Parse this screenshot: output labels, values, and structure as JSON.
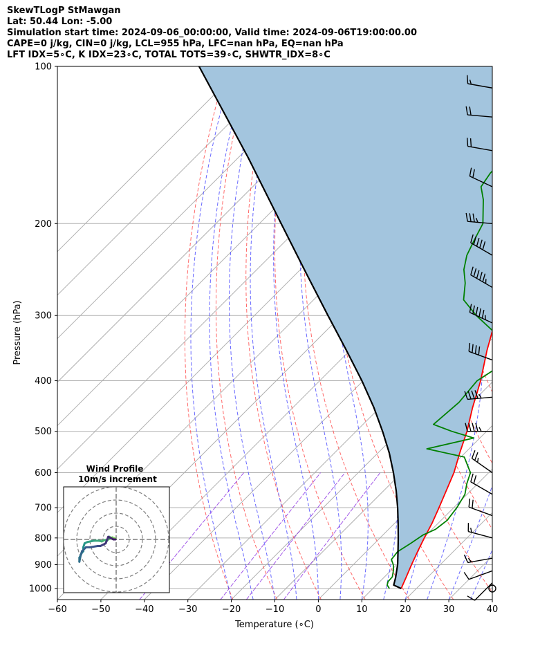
{
  "header": {
    "line1": "SkewTLogP StMawgan",
    "line2": "Lat: 50.44   Lon: -5.00",
    "line3": "Simulation start time: 2024-09-06_00:00:00, Valid time: 2024-09-06T19:00:00.00",
    "line4": "CAPE=0 j/kg, CIN=0 j/kg, LCL=955 hPa, LFC=nan hPa, EQ=nan hPa",
    "line5": "LFT IDX=5∘C, K IDX=23∘C, TOTAL TOTS=39∘C, SHWTR_IDX=8∘C"
  },
  "chart_data": {
    "type": "line",
    "xlabel": "Temperature (∘C)",
    "ylabel": "Pressure (hPa)",
    "xlim": [
      -60,
      40
    ],
    "ylim": [
      1050,
      100
    ],
    "yscale": "log",
    "grid": true,
    "x_ticks": [
      -60,
      -50,
      -40,
      -30,
      -20,
      -10,
      0,
      10,
      20,
      30,
      40
    ],
    "x_tick_labels": [
      "−60",
      "−50",
      "−40",
      "−30",
      "−20",
      "−10",
      "0",
      "10",
      "20",
      "30",
      "40"
    ],
    "y_ticks": [
      1000,
      900,
      800,
      700,
      600,
      500,
      400,
      300,
      200,
      100
    ],
    "y_tick_labels": [
      "1000",
      "900",
      "800",
      "700",
      "600",
      "500",
      "400",
      "300",
      "200",
      "100"
    ],
    "series": [
      {
        "color": "#ff0000",
        "pressure": [
          1000,
          950,
          900,
          850,
          800,
          750,
          700,
          650,
          600,
          550,
          500,
          450,
          400,
          350,
          300,
          290,
          275,
          250,
          230,
          215,
          200,
          185,
          170,
          160,
          150,
          140,
          130,
          120,
          110,
          100
        ],
        "values": [
          16.5,
          15.0,
          13.4,
          11.8,
          10.2,
          8.6,
          6.6,
          4.4,
          2.0,
          -1.2,
          -4.5,
          -8.7,
          -13.0,
          -18.5,
          -24.3,
          -25.2,
          -25.6,
          -25.0,
          -24.0,
          -22.5,
          -20.4,
          -18.0,
          -16.0,
          -14.5,
          -13.3,
          -12.0,
          -11.0,
          -9.6,
          -8.7,
          -7.3
        ]
      },
      {
        "color": "#008000",
        "pressure": [
          1000,
          985,
          970,
          950,
          920,
          900,
          880,
          850,
          820,
          790,
          770,
          740,
          700,
          660,
          630,
          600,
          560,
          540,
          515,
          500,
          485,
          440,
          400,
          360,
          340,
          320,
          300,
          280,
          260,
          245,
          230,
          215,
          200,
          180,
          170,
          160,
          150,
          140,
          130,
          120,
          110,
          100
        ],
        "values": [
          13.8,
          12.5,
          11.9,
          11.8,
          10.4,
          9.2,
          7.6,
          7.2,
          8.3,
          9.2,
          10.8,
          11.4,
          10.7,
          9.5,
          7.5,
          5.8,
          0.8,
          -9.7,
          -1.4,
          -8.0,
          -13.8,
          -13.0,
          -13.8,
          -10.8,
          -14.8,
          -22.0,
          -29.0,
          -35.5,
          -39.0,
          -42.4,
          -45.0,
          -46.8,
          -48.6,
          -54.0,
          -57.5,
          -58.5,
          -58.5,
          -58.3,
          -58.0,
          -57.9,
          -57.8,
          -57.5
        ]
      },
      {
        "color": "#000000",
        "pressure": [
          1000,
          985,
          970,
          955,
          900,
          850,
          800,
          750,
          700,
          650,
          600,
          550,
          500,
          450,
          400,
          350,
          300,
          250,
          200,
          150,
          100
        ],
        "values": [
          16.5,
          14.0,
          13.4,
          12.8,
          10.2,
          7.3,
          4.2,
          0.8,
          -2.9,
          -7.1,
          -11.9,
          -17.4,
          -23.9,
          -31.4,
          -40.3,
          -50.8,
          -63.1,
          -77.5,
          -95.0,
          -117.5,
          -150.0
        ]
      }
    ],
    "dry_adiabats_theta": [
      250,
      260,
      270,
      280,
      290,
      300,
      310,
      320,
      330,
      340,
      350,
      360,
      370,
      380,
      390,
      400,
      410,
      420
    ],
    "moist_adiabats_start": [
      -20,
      -15,
      -10,
      -5,
      0,
      5,
      10,
      15,
      20,
      25,
      30,
      35
    ],
    "wind_barbs": [
      {
        "p": 1000,
        "speed": 0,
        "dir": 0
      },
      {
        "p": 975,
        "speed": 10,
        "dir": 225
      },
      {
        "p": 925,
        "speed": 10,
        "dir": 250
      },
      {
        "p": 875,
        "speed": 15,
        "dir": 260
      },
      {
        "p": 800,
        "speed": 15,
        "dir": 285
      },
      {
        "p": 725,
        "speed": 20,
        "dir": 290
      },
      {
        "p": 660,
        "speed": 20,
        "dir": 300
      },
      {
        "p": 600,
        "speed": 25,
        "dir": 305
      },
      {
        "p": 500,
        "speed": 45,
        "dir": 270
      },
      {
        "p": 430,
        "speed": 45,
        "dir": 265
      },
      {
        "p": 365,
        "speed": 40,
        "dir": 290
      },
      {
        "p": 310,
        "speed": 55,
        "dir": 295
      },
      {
        "p": 265,
        "speed": 55,
        "dir": 300
      },
      {
        "p": 230,
        "speed": 50,
        "dir": 300
      },
      {
        "p": 200,
        "speed": 35,
        "dir": 275
      },
      {
        "p": 170,
        "speed": 20,
        "dir": 295
      },
      {
        "p": 145,
        "speed": 20,
        "dir": 280
      },
      {
        "p": 125,
        "speed": 20,
        "dir": 275
      },
      {
        "p": 110,
        "speed": 15,
        "dir": 280
      }
    ],
    "hodograph": {
      "title": "Wind Profile",
      "subtitle": "10m/s increment",
      "rings": [
        10,
        20,
        30,
        40
      ],
      "range": 40,
      "u": [
        -0.5,
        -3,
        -4,
        -5,
        -6,
        -7,
        -9,
        -11,
        -13,
        -17,
        -22,
        -24,
        -25,
        -25,
        -26,
        -27,
        -28,
        -28,
        -27,
        -26,
        -23,
        -20,
        -14,
        -12,
        -10,
        -8,
        -6,
        -4,
        -2,
        -0.5
      ],
      "v": [
        0.5,
        1.5,
        0.5,
        2,
        0,
        -1,
        -0.5,
        -1.5,
        -1,
        -1,
        -2,
        -3,
        -6,
        -9,
        -10,
        -12,
        -14,
        -17,
        -12,
        -9,
        -6,
        -6,
        -5,
        -5,
        -4,
        -3,
        2,
        1,
        0,
        0
      ]
    }
  }
}
